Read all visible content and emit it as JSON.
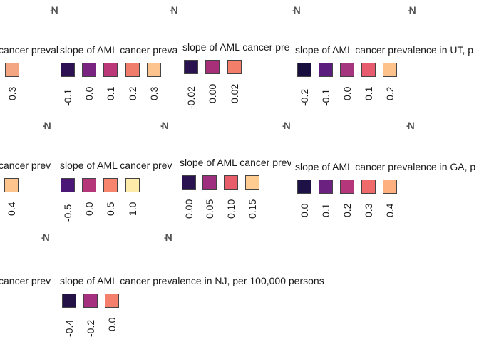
{
  "legend_prefix": "slope of AML cancer prevalence in",
  "legend_suffix": ", per 100,000 persons",
  "map_marks": [
    "-N",
    "-N",
    "-N",
    "-N",
    "-N",
    "-N",
    "-N",
    "-N",
    "-N",
    "-N"
  ],
  "chart_data": [
    {
      "type": "map-legend",
      "state": "",
      "title": "cancer prevalence",
      "categories": [
        "0.3"
      ],
      "values": [
        0.3
      ],
      "colors": [
        "#F4A582"
      ]
    },
    {
      "type": "map-legend",
      "state": "",
      "title": "slope of AML cancer preva",
      "categories": [
        "-0.1",
        "0.0",
        "0.1",
        "0.2",
        "0.3"
      ],
      "values": [
        -0.1,
        0.0,
        0.1,
        0.2,
        0.3
      ],
      "colors": [
        "#2D1152",
        "#7A2481",
        "#BB3978",
        "#F07C6C",
        "#FDC48F"
      ]
    },
    {
      "type": "map-legend",
      "state": "",
      "title": "slope of AML cancer pre",
      "categories": [
        "-0.02",
        "0.00",
        "0.02"
      ],
      "values": [
        -0.02,
        0.0,
        0.02
      ],
      "colors": [
        "#2A1150",
        "#A72F7A",
        "#F37F6B"
      ]
    },
    {
      "type": "map-legend",
      "state": "UT",
      "title": "slope of AML cancer prevalence in UT, p",
      "categories": [
        "-0.2",
        "-0.1",
        "0.0",
        "0.1",
        "0.2"
      ],
      "values": [
        -0.2,
        -0.1,
        0.0,
        0.1,
        0.2
      ],
      "colors": [
        "#180F3E",
        "#5B1E7F",
        "#A6357F",
        "#E65B6E",
        "#FDC28A"
      ]
    },
    {
      "type": "map-legend",
      "state": "",
      "title": "cancer prev",
      "categories": [
        "0.4"
      ],
      "values": [
        0.4
      ],
      "colors": [
        "#FDC58D"
      ]
    },
    {
      "type": "map-legend",
      "state": "",
      "title": "slope of AML cancer prev",
      "categories": [
        "-0.5",
        "0.0",
        "0.5",
        "1.0"
      ],
      "values": [
        -0.5,
        0.0,
        0.5,
        1.0
      ],
      "colors": [
        "#4B1777",
        "#B6367A",
        "#F7846C",
        "#FDEBA9"
      ]
    },
    {
      "type": "map-legend",
      "state": "",
      "title": "slope of AML cancer prev",
      "categories": [
        "0.00",
        "0.05",
        "0.10",
        "0.15"
      ],
      "values": [
        0.0,
        0.05,
        0.1,
        0.15
      ],
      "colors": [
        "#2A1150",
        "#9E2F7F",
        "#E75D6A",
        "#FECB91"
      ]
    },
    {
      "type": "map-legend",
      "state": "GA",
      "title": "slope of AML cancer prevalence in GA, p",
      "categories": [
        "0.0",
        "0.1",
        "0.2",
        "0.3",
        "0.4"
      ],
      "values": [
        0.0,
        0.1,
        0.2,
        0.3,
        0.4
      ],
      "colors": [
        "#1E1146",
        "#6B2180",
        "#B5367A",
        "#EE6A6B",
        "#FEB07F"
      ]
    },
    {
      "type": "map-legend",
      "state": "",
      "title": "cancer prev",
      "categories": [],
      "values": [],
      "colors": []
    },
    {
      "type": "map-legend",
      "state": "NJ",
      "title": "slope of AML cancer prevalence in NJ, per 100,000 persons",
      "categories": [
        "-0.4",
        "-0.2",
        "0.0"
      ],
      "values": [
        -0.4,
        -0.2,
        0.0
      ],
      "colors": [
        "#241247",
        "#A5307F",
        "#F37F6C"
      ]
    }
  ]
}
